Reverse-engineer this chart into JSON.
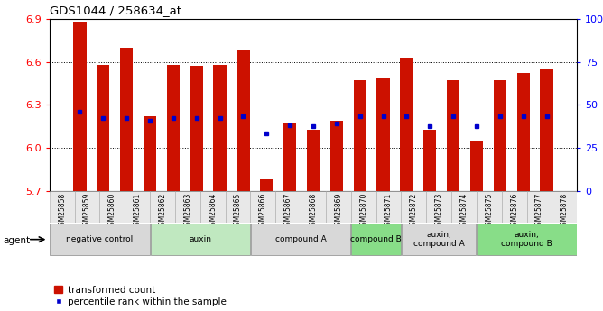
{
  "title": "GDS1044 / 258634_at",
  "samples": [
    "GSM25858",
    "GSM25859",
    "GSM25860",
    "GSM25861",
    "GSM25862",
    "GSM25863",
    "GSM25864",
    "GSM25865",
    "GSM25866",
    "GSM25867",
    "GSM25868",
    "GSM25869",
    "GSM25870",
    "GSM25871",
    "GSM25872",
    "GSM25873",
    "GSM25874",
    "GSM25875",
    "GSM25876",
    "GSM25877",
    "GSM25878"
  ],
  "bar_values": [
    6.88,
    6.58,
    6.7,
    6.22,
    6.58,
    6.57,
    6.58,
    6.68,
    5.78,
    6.17,
    6.13,
    6.19,
    6.47,
    6.49,
    6.63,
    6.13,
    6.47,
    6.05,
    6.47,
    6.52,
    6.55
  ],
  "pct_values": [
    6.25,
    6.21,
    6.21,
    6.19,
    6.21,
    6.21,
    6.21,
    6.22,
    6.1,
    6.16,
    6.15,
    6.17,
    6.22,
    6.22,
    6.22,
    6.15,
    6.22,
    6.15,
    6.22,
    6.22,
    6.22
  ],
  "ylim_min": 5.7,
  "ylim_max": 6.9,
  "yticks_left": [
    5.7,
    6.0,
    6.3,
    6.6,
    6.9
  ],
  "yticks_right_pct": [
    0,
    25,
    50,
    75,
    100
  ],
  "bar_color": "#cc1100",
  "marker_color": "#0000cc",
  "groups": [
    {
      "label": "negative control",
      "start": 0,
      "end": 4,
      "color": "#d8d8d8"
    },
    {
      "label": "auxin",
      "start": 4,
      "end": 8,
      "color": "#c0e8c0"
    },
    {
      "label": "compound A",
      "start": 8,
      "end": 12,
      "color": "#d8d8d8"
    },
    {
      "label": "compound B",
      "start": 12,
      "end": 14,
      "color": "#88dd88"
    },
    {
      "label": "auxin,\ncompound A",
      "start": 14,
      "end": 17,
      "color": "#d8d8d8"
    },
    {
      "label": "auxin,\ncompound B",
      "start": 17,
      "end": 21,
      "color": "#88dd88"
    }
  ],
  "legend_bar_label": "transformed count",
  "legend_marker_label": "percentile rank within the sample",
  "agent_label": "agent"
}
